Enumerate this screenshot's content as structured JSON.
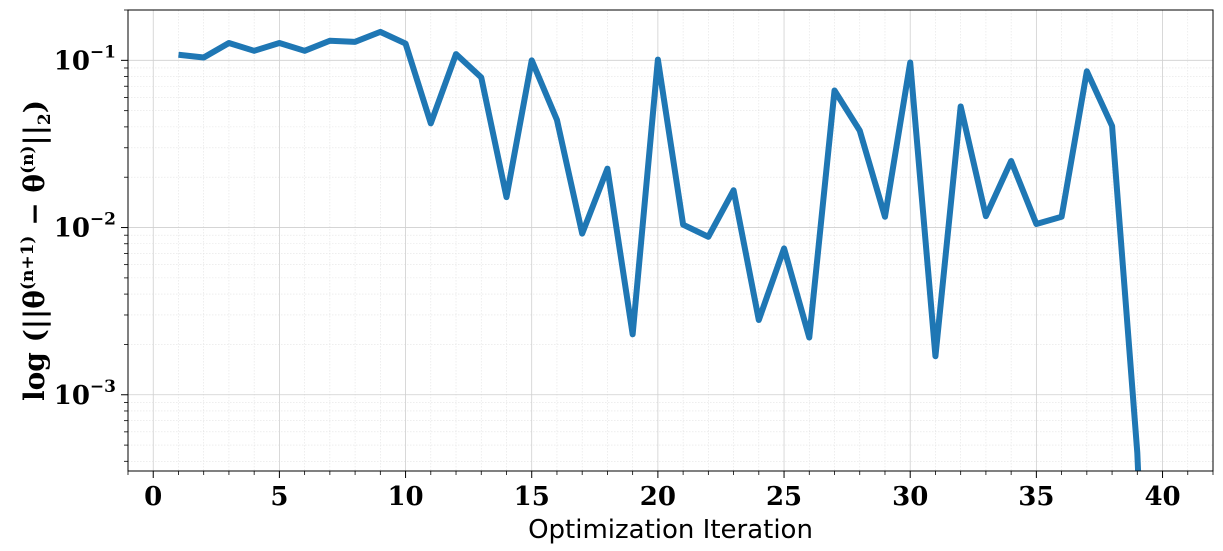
{
  "chart_data": {
    "type": "line",
    "xlabel": "Optimization Iteration",
    "ylabel": "log (||θ(n+1) − θ(n)||2)",
    "ylabel_parts": {
      "prefix": "log (||",
      "theta1": "θ",
      "sup1": "(n+1)",
      "minus": " − ",
      "theta2": "θ",
      "sup2": "(n)",
      "suffix": "||",
      "sub": "2",
      "close": ")"
    },
    "xlim": [
      -1,
      42
    ],
    "ylim": [
      0.00035,
      0.2
    ],
    "yscale": "log",
    "grid": true,
    "line_color": "#1f77b4",
    "x_ticks": [
      0,
      5,
      10,
      15,
      20,
      25,
      30,
      35,
      40
    ],
    "x_tick_labels": [
      "0",
      "5",
      "10",
      "15",
      "20",
      "25",
      "30",
      "35",
      "40"
    ],
    "y_ticks": [
      0.001,
      0.01,
      0.1
    ],
    "y_tick_labels": [
      {
        "base": "10",
        "exp": "−3"
      },
      {
        "base": "10",
        "exp": "−2"
      },
      {
        "base": "10",
        "exp": "−1"
      }
    ],
    "series": [
      {
        "x": [
          1,
          2,
          3,
          4,
          5,
          6,
          7,
          8,
          9,
          10,
          11,
          12,
          13,
          14,
          15,
          16,
          17,
          18,
          19,
          20,
          21,
          22,
          23,
          24,
          25,
          26,
          27,
          28,
          29,
          30,
          31,
          32,
          33,
          34,
          35,
          36,
          37,
          38,
          39,
          39.05
        ],
        "y": [
          0.108,
          0.104,
          0.127,
          0.114,
          0.127,
          0.114,
          0.131,
          0.129,
          0.148,
          0.126,
          0.042,
          0.109,
          0.079,
          0.0152,
          0.1,
          0.044,
          0.0092,
          0.0225,
          0.0023,
          0.101,
          0.0104,
          0.0088,
          0.0167,
          0.0028,
          0.0075,
          0.0022,
          0.066,
          0.038,
          0.0116,
          0.097,
          0.0017,
          0.053,
          0.0117,
          0.025,
          0.0105,
          0.0116,
          0.086,
          0.0405,
          0.00045,
          0.0003
        ]
      }
    ]
  }
}
